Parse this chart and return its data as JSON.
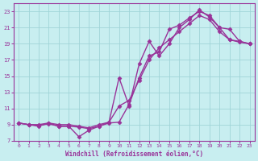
{
  "xlabel": "Windchill (Refroidissement éolien,°C)",
  "background_color": "#c8eef0",
  "grid_color": "#a0d4d8",
  "line_color": "#993399",
  "marker": "D",
  "markersize": 2.5,
  "linewidth": 1.0,
  "xlim": [
    -0.5,
    23.5
  ],
  "ylim": [
    7,
    24
  ],
  "xticks": [
    0,
    1,
    2,
    3,
    4,
    5,
    6,
    7,
    8,
    9,
    10,
    11,
    12,
    13,
    14,
    15,
    16,
    17,
    18,
    19,
    20,
    21,
    22,
    23
  ],
  "yticks": [
    7,
    9,
    11,
    13,
    15,
    17,
    19,
    21,
    23
  ],
  "curve1_x": [
    0,
    1,
    2,
    3,
    4,
    5,
    6,
    7,
    8,
    9,
    10,
    11,
    12,
    13,
    14,
    15,
    16,
    17,
    18,
    19,
    20,
    21,
    22,
    23
  ],
  "curve1_y": [
    9.2,
    9.0,
    8.9,
    9.1,
    8.8,
    8.8,
    8.7,
    8.5,
    8.8,
    9.3,
    11.3,
    12.0,
    14.5,
    17.0,
    18.5,
    19.5,
    20.5,
    21.5,
    22.5,
    22.0,
    20.5,
    19.5,
    19.2,
    19.0
  ],
  "curve2_x": [
    0,
    1,
    2,
    3,
    4,
    5,
    6,
    7,
    8,
    9,
    10,
    11,
    12,
    13,
    14,
    15,
    16,
    17,
    18,
    19,
    20,
    21,
    22,
    23
  ],
  "curve2_y": [
    9.2,
    9.0,
    9.0,
    9.2,
    9.0,
    9.0,
    8.8,
    8.6,
    9.0,
    9.3,
    14.8,
    11.3,
    16.5,
    19.3,
    17.5,
    19.0,
    21.0,
    22.0,
    23.2,
    22.3,
    21.0,
    19.5,
    19.3,
    19.0
  ],
  "curve3_x": [
    0,
    1,
    2,
    3,
    4,
    5,
    6,
    7,
    8,
    9,
    10,
    11,
    12,
    13,
    14,
    15,
    16,
    17,
    18,
    19,
    20,
    21,
    22,
    23
  ],
  "curve3_y": [
    9.2,
    9.0,
    8.8,
    9.2,
    8.8,
    8.8,
    7.5,
    8.3,
    8.8,
    9.2,
    9.3,
    11.5,
    14.8,
    17.5,
    18.0,
    20.8,
    21.3,
    22.2,
    23.0,
    22.5,
    21.0,
    20.8,
    19.3,
    19.0
  ]
}
